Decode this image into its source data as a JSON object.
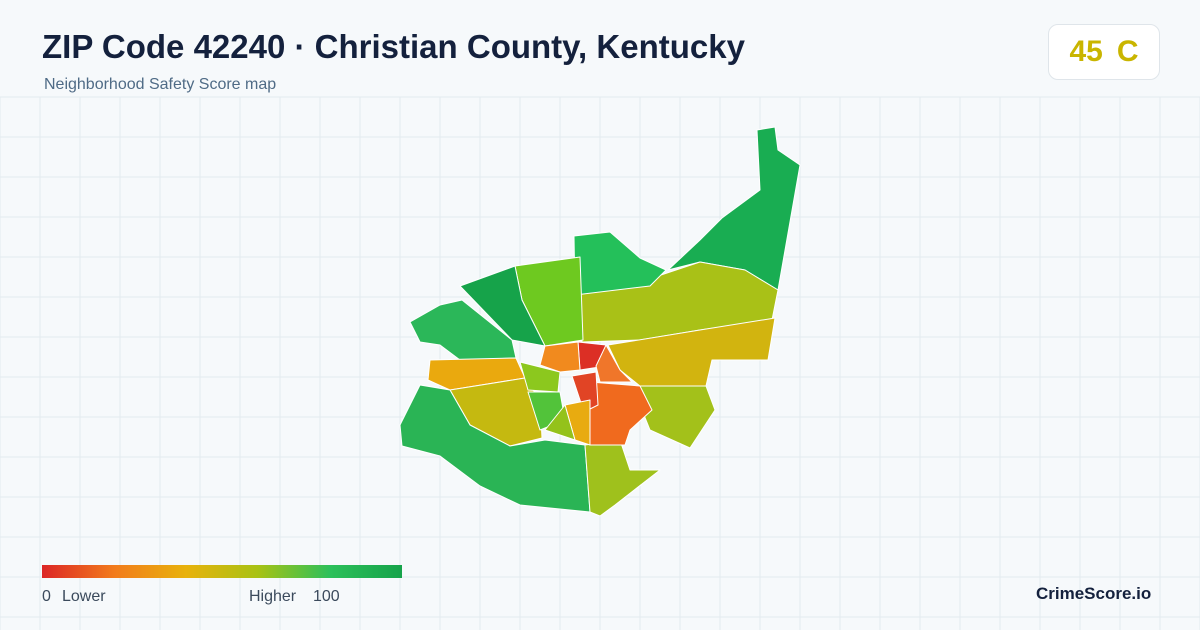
{
  "header": {
    "title": "ZIP Code 42240 · Christian County, Kentucky",
    "subtitle": "Neighborhood Safety Score map"
  },
  "score": {
    "value": "45",
    "grade": "C"
  },
  "legend": {
    "min": "0",
    "min_label": "Lower",
    "max_label": "Higher",
    "max": "100"
  },
  "brand": "CrimeScore.io"
}
